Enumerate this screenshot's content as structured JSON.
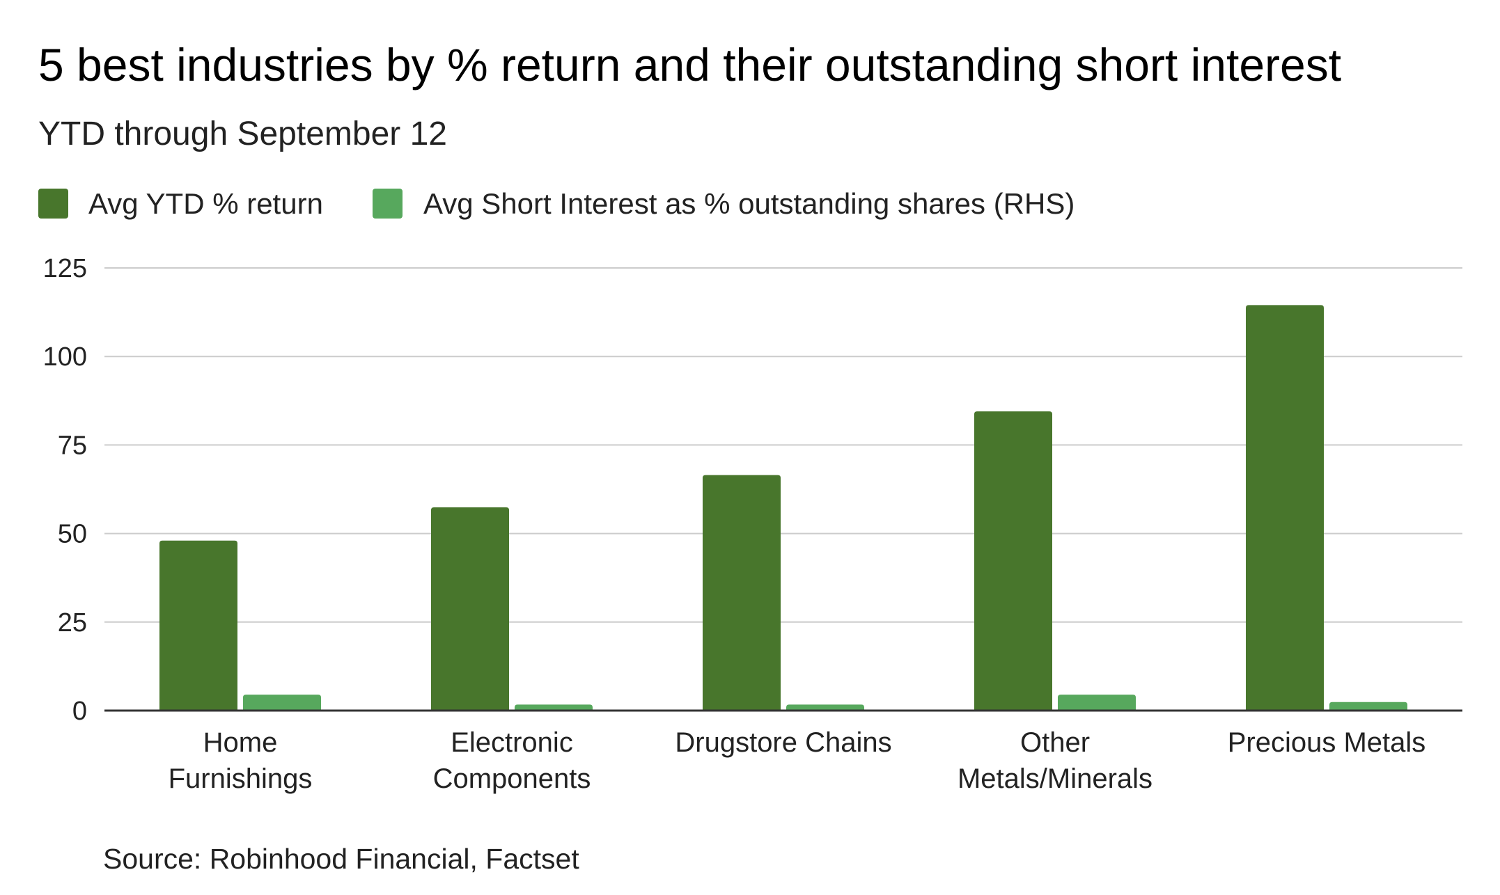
{
  "chart_data": {
    "type": "bar",
    "title": "5 best industries by % return and their outstanding short interest",
    "subtitle": "YTD through September 12",
    "source": "Source: Robinhood Financial, Factset",
    "categories": [
      [
        "Home",
        "Furnishings"
      ],
      [
        "Electronic",
        "Components"
      ],
      [
        "Drugstore Chains"
      ],
      [
        "Other",
        "Metals/Minerals"
      ],
      [
        "Precious Metals"
      ]
    ],
    "series": [
      {
        "name": "Avg YTD % return",
        "color": "#48762c",
        "values": [
          48,
          57.4,
          66.5,
          84.5,
          114.5
        ]
      },
      {
        "name": "Avg Short Interest as % outstanding shares (RHS)",
        "color": "#57a85d",
        "values": [
          4.5,
          1.7,
          1.7,
          4.5,
          2.4
        ]
      }
    ],
    "ylim": [
      0,
      125
    ],
    "yticks": [
      0,
      25,
      50,
      75,
      100,
      125
    ],
    "grid": true,
    "legend_position": "top-left"
  }
}
